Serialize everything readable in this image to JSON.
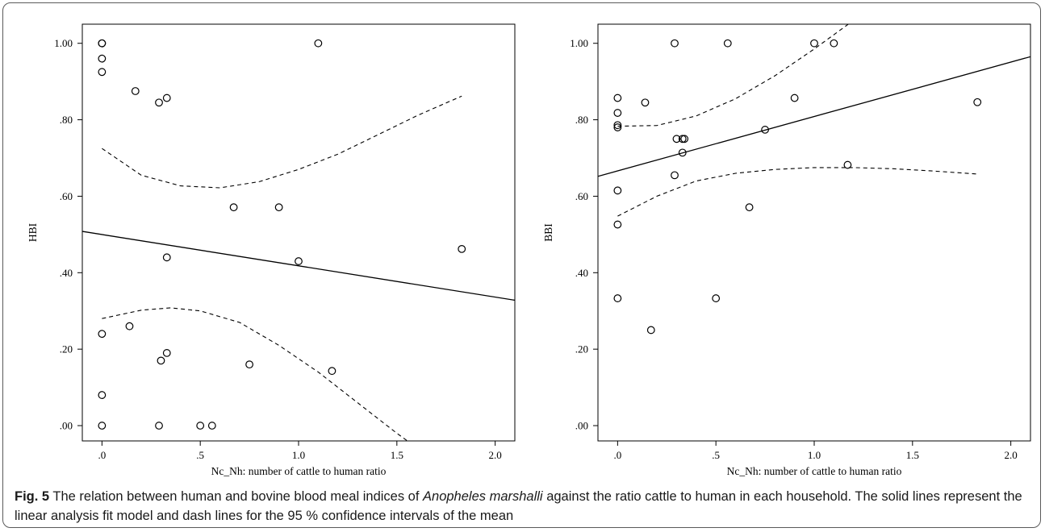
{
  "caption": {
    "label": "Fig. 5",
    "part1": " The relation between human and bovine blood meal indices of ",
    "species": "Anopheles marshalli",
    "part2": " against the ratio cattle to human in each household. The solid lines represent the linear analysis fit model and dash lines for the 95 % confidence intervals of the mean"
  },
  "chart_data": [
    {
      "type": "scatter",
      "title": "",
      "xlabel": "Nc_Nh: number of cattle to human ratio",
      "ylabel": "HBI",
      "xlim": [
        -0.1,
        2.1
      ],
      "ylim": [
        -0.04,
        1.05
      ],
      "x_ticks": [
        0,
        0.5,
        1.0,
        1.5,
        2.0
      ],
      "x_tick_labels": [
        ".0",
        ".5",
        "1.0",
        "1.5",
        "2.0"
      ],
      "y_ticks": [
        0,
        0.2,
        0.4,
        0.6,
        0.8,
        1.0
      ],
      "y_tick_labels": [
        ".00",
        ".20",
        ".40",
        ".60",
        ".80",
        "1.00"
      ],
      "grid": false,
      "points": {
        "x": [
          0,
          0,
          0,
          0,
          0,
          0,
          0,
          0.17,
          0.29,
          0.33,
          1.1,
          0.67,
          0.9,
          1.83,
          0.33,
          1.0,
          0.14,
          0.33,
          0.3,
          0.75,
          1.17,
          0.29,
          0.5,
          0.56
        ],
        "y": [
          1.0,
          1.0,
          0.96,
          0.925,
          0.24,
          0.08,
          0.0,
          0.875,
          0.845,
          0.857,
          1.0,
          0.571,
          0.571,
          0.462,
          0.44,
          0.43,
          0.26,
          0.19,
          0.17,
          0.16,
          0.143,
          0.0,
          0.0,
          0.0
        ]
      },
      "fit_line": {
        "x": [
          -0.1,
          2.1
        ],
        "y": [
          0.508,
          0.328
        ]
      },
      "ci_upper": {
        "x": [
          0,
          0.2,
          0.4,
          0.6,
          0.8,
          1.0,
          1.2,
          1.4,
          1.6,
          1.83
        ],
        "y": [
          0.725,
          0.655,
          0.627,
          0.622,
          0.638,
          0.67,
          0.71,
          0.76,
          0.81,
          0.862
        ]
      },
      "ci_lower": {
        "x": [
          0,
          0.2,
          0.35,
          0.5,
          0.7,
          0.9,
          1.1,
          1.3,
          1.5,
          1.58
        ],
        "y": [
          0.28,
          0.302,
          0.308,
          0.3,
          0.27,
          0.21,
          0.14,
          0.06,
          -0.02,
          -0.05
        ]
      }
    },
    {
      "type": "scatter",
      "title": "",
      "xlabel": "Nc_Nh: number of cattle to human ratio",
      "ylabel": "BBI",
      "xlim": [
        -0.1,
        2.1
      ],
      "ylim": [
        -0.04,
        1.05
      ],
      "x_ticks": [
        0,
        0.5,
        1.0,
        1.5,
        2.0
      ],
      "x_tick_labels": [
        ".0",
        ".5",
        "1.0",
        "1.5",
        "2.0"
      ],
      "y_ticks": [
        0,
        0.2,
        0.4,
        0.6,
        0.8,
        1.0
      ],
      "y_tick_labels": [
        ".00",
        ".20",
        ".40",
        ".60",
        ".80",
        "1.00"
      ],
      "grid": false,
      "points": {
        "x": [
          0.29,
          0.56,
          1.0,
          1.1,
          0,
          0,
          0,
          0,
          0,
          0,
          0,
          0.14,
          0.3,
          0.33,
          0.34,
          0.33,
          0.29,
          0.75,
          0.9,
          0.67,
          1.17,
          1.83,
          0.5,
          0.17
        ],
        "y": [
          1.0,
          1.0,
          1.0,
          1.0,
          0.857,
          0.818,
          0.786,
          0.78,
          0.615,
          0.526,
          0.333,
          0.845,
          0.75,
          0.75,
          0.75,
          0.714,
          0.655,
          0.774,
          0.857,
          0.571,
          0.682,
          0.846,
          0.333,
          0.25
        ]
      },
      "fit_line": {
        "x": [
          -0.1,
          2.1
        ],
        "y": [
          0.652,
          0.965
        ]
      },
      "ci_upper": {
        "x": [
          0,
          0.2,
          0.4,
          0.6,
          0.8,
          1.0,
          1.2,
          1.35
        ],
        "y": [
          0.783,
          0.785,
          0.81,
          0.855,
          0.915,
          0.985,
          1.06,
          1.05
        ]
      },
      "ci_lower": {
        "x": [
          0,
          0.2,
          0.4,
          0.6,
          0.8,
          1.0,
          1.2,
          1.4,
          1.6,
          1.83
        ],
        "y": [
          0.548,
          0.6,
          0.64,
          0.66,
          0.67,
          0.675,
          0.675,
          0.672,
          0.666,
          0.658
        ]
      }
    }
  ]
}
